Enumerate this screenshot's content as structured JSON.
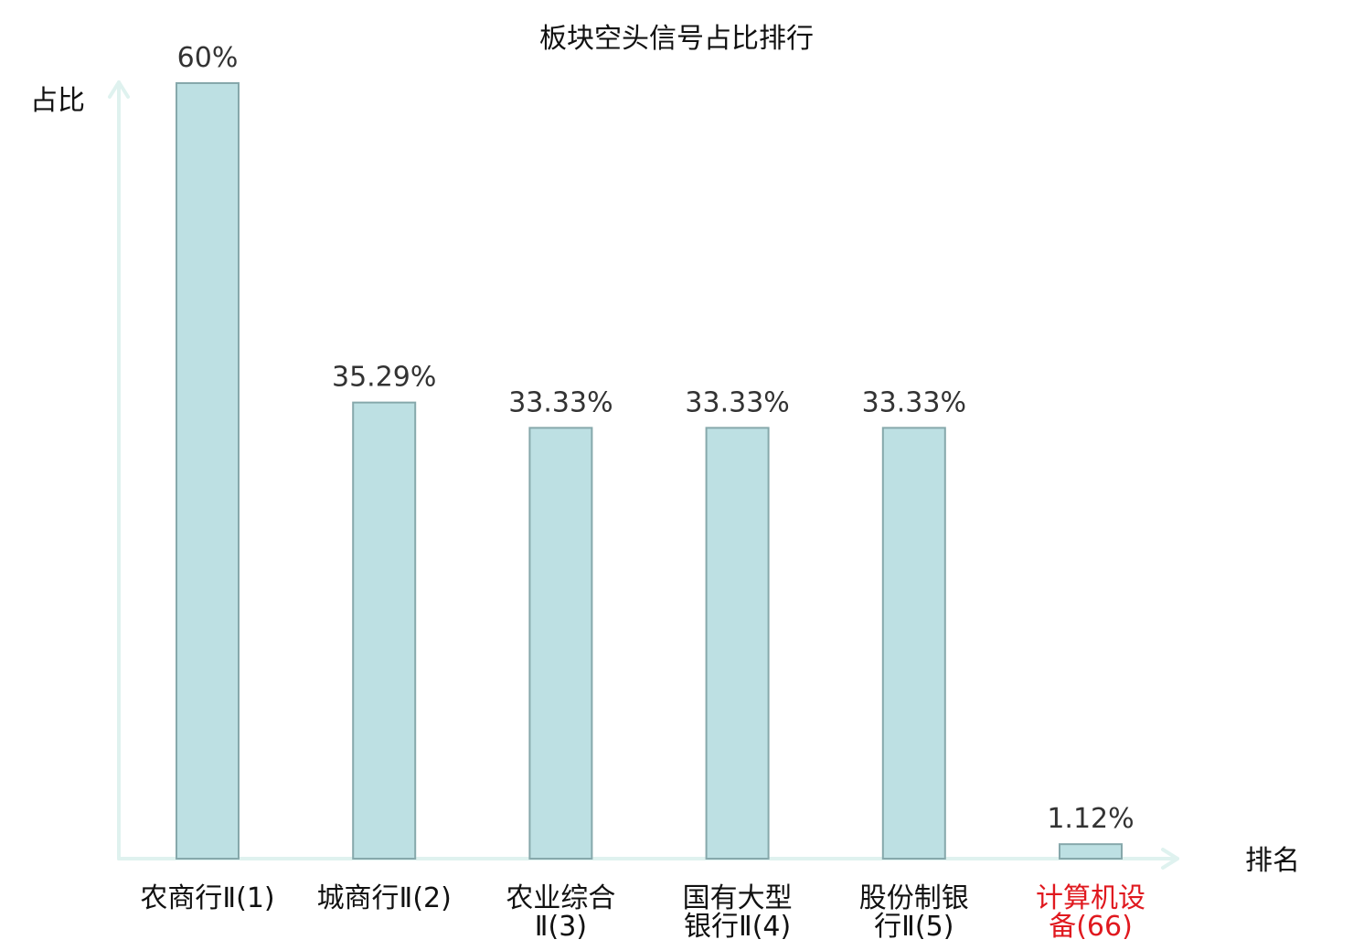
{
  "chart_data": {
    "type": "bar",
    "title": "板块空头信号占比排行",
    "ylabel": "占比",
    "xlabel": "排名",
    "categories": [
      {
        "lines": [
          "农商行Ⅱ(1)"
        ],
        "highlight": false
      },
      {
        "lines": [
          "城商行Ⅱ(2)"
        ],
        "highlight": false
      },
      {
        "lines": [
          "农业综合",
          "Ⅱ(3)"
        ],
        "highlight": false
      },
      {
        "lines": [
          "国有大型",
          "银行Ⅱ(4)"
        ],
        "highlight": false
      },
      {
        "lines": [
          "股份制银",
          "行Ⅱ(5)"
        ],
        "highlight": false
      },
      {
        "lines": [
          "计算机设",
          "备(66)"
        ],
        "highlight": true
      }
    ],
    "values": [
      60,
      35.29,
      33.33,
      33.33,
      33.33,
      1.12
    ],
    "value_labels": [
      "60%",
      "35.29%",
      "33.33%",
      "33.33%",
      "33.33%",
      "1.12%"
    ],
    "ylim": [
      0,
      60
    ],
    "grid": false,
    "colors": {
      "bar_fill": "#bde0e3",
      "bar_stroke": "#86a8ab",
      "axis": "#dff2ef",
      "highlight_text": "#e0191f",
      "normal_text": "#111111"
    }
  }
}
